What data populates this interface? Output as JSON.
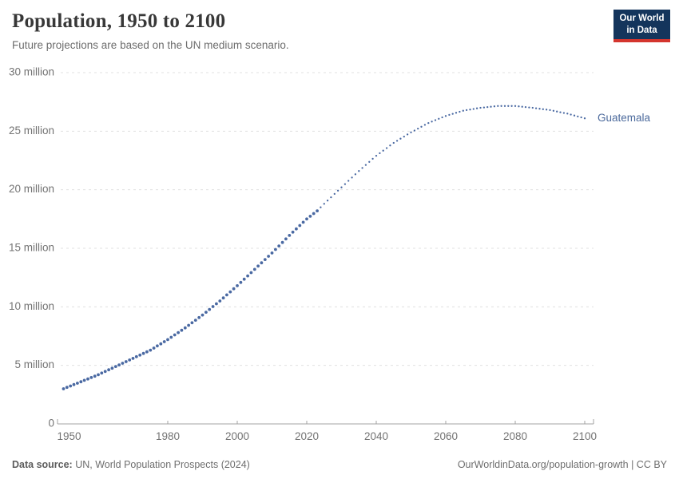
{
  "header": {
    "title": "Population, 1950 to 2100",
    "subtitle": "Future projections are based on the UN medium scenario."
  },
  "logo": {
    "line1": "Our World",
    "line2": "in Data"
  },
  "footer": {
    "source_label": "Data source:",
    "source_value": " UN, World Population Prospects (2024)",
    "right_text": "OurWorldinData.org/population-growth | CC BY"
  },
  "colors": {
    "series_blue": "#4a69a2",
    "entity_label_blue": "#4c6a9c",
    "gridline": "#e0e0e0",
    "axis_line": "#a3a3a3",
    "tick_label": "#737373",
    "logo_navy": "#14355c",
    "logo_red": "#d4352e"
  },
  "chart_data": {
    "type": "line",
    "title": "Population, 1950 to 2100",
    "subtitle": "Future projections are based on the UN medium scenario.",
    "entity": "Guatemala",
    "line_style": "dotted",
    "grid": true,
    "legend_position": "end-of-line-label",
    "xlim": [
      1950,
      2100
    ],
    "ylim_million": [
      0,
      30
    ],
    "x_ticks": [
      1950,
      1980,
      2000,
      2020,
      2040,
      2060,
      2080,
      2100
    ],
    "y_ticks_million": [
      0,
      5,
      10,
      15,
      20,
      25,
      30
    ],
    "y_tick_labels": [
      "0",
      "5 million",
      "10 million",
      "15 million",
      "20 million",
      "25 million",
      "30 million"
    ],
    "projection_from_year": 2024,
    "series": [
      {
        "name": "Guatemala",
        "points_year_million": [
          [
            1950,
            3.0
          ],
          [
            1955,
            3.6
          ],
          [
            1960,
            4.2
          ],
          [
            1965,
            4.9
          ],
          [
            1970,
            5.6
          ],
          [
            1975,
            6.3
          ],
          [
            1980,
            7.2
          ],
          [
            1985,
            8.2
          ],
          [
            1990,
            9.3
          ],
          [
            1995,
            10.5
          ],
          [
            2000,
            11.8
          ],
          [
            2005,
            13.2
          ],
          [
            2010,
            14.6
          ],
          [
            2015,
            16.1
          ],
          [
            2020,
            17.5
          ],
          [
            2023,
            18.2
          ],
          [
            2025,
            18.8
          ],
          [
            2030,
            20.2
          ],
          [
            2035,
            21.6
          ],
          [
            2040,
            22.9
          ],
          [
            2045,
            24.0
          ],
          [
            2050,
            24.9
          ],
          [
            2055,
            25.7
          ],
          [
            2060,
            26.3
          ],
          [
            2065,
            26.75
          ],
          [
            2070,
            27.0
          ],
          [
            2075,
            27.15
          ],
          [
            2080,
            27.15
          ],
          [
            2085,
            27.0
          ],
          [
            2090,
            26.8
          ],
          [
            2095,
            26.5
          ],
          [
            2100,
            26.1
          ]
        ]
      }
    ]
  }
}
